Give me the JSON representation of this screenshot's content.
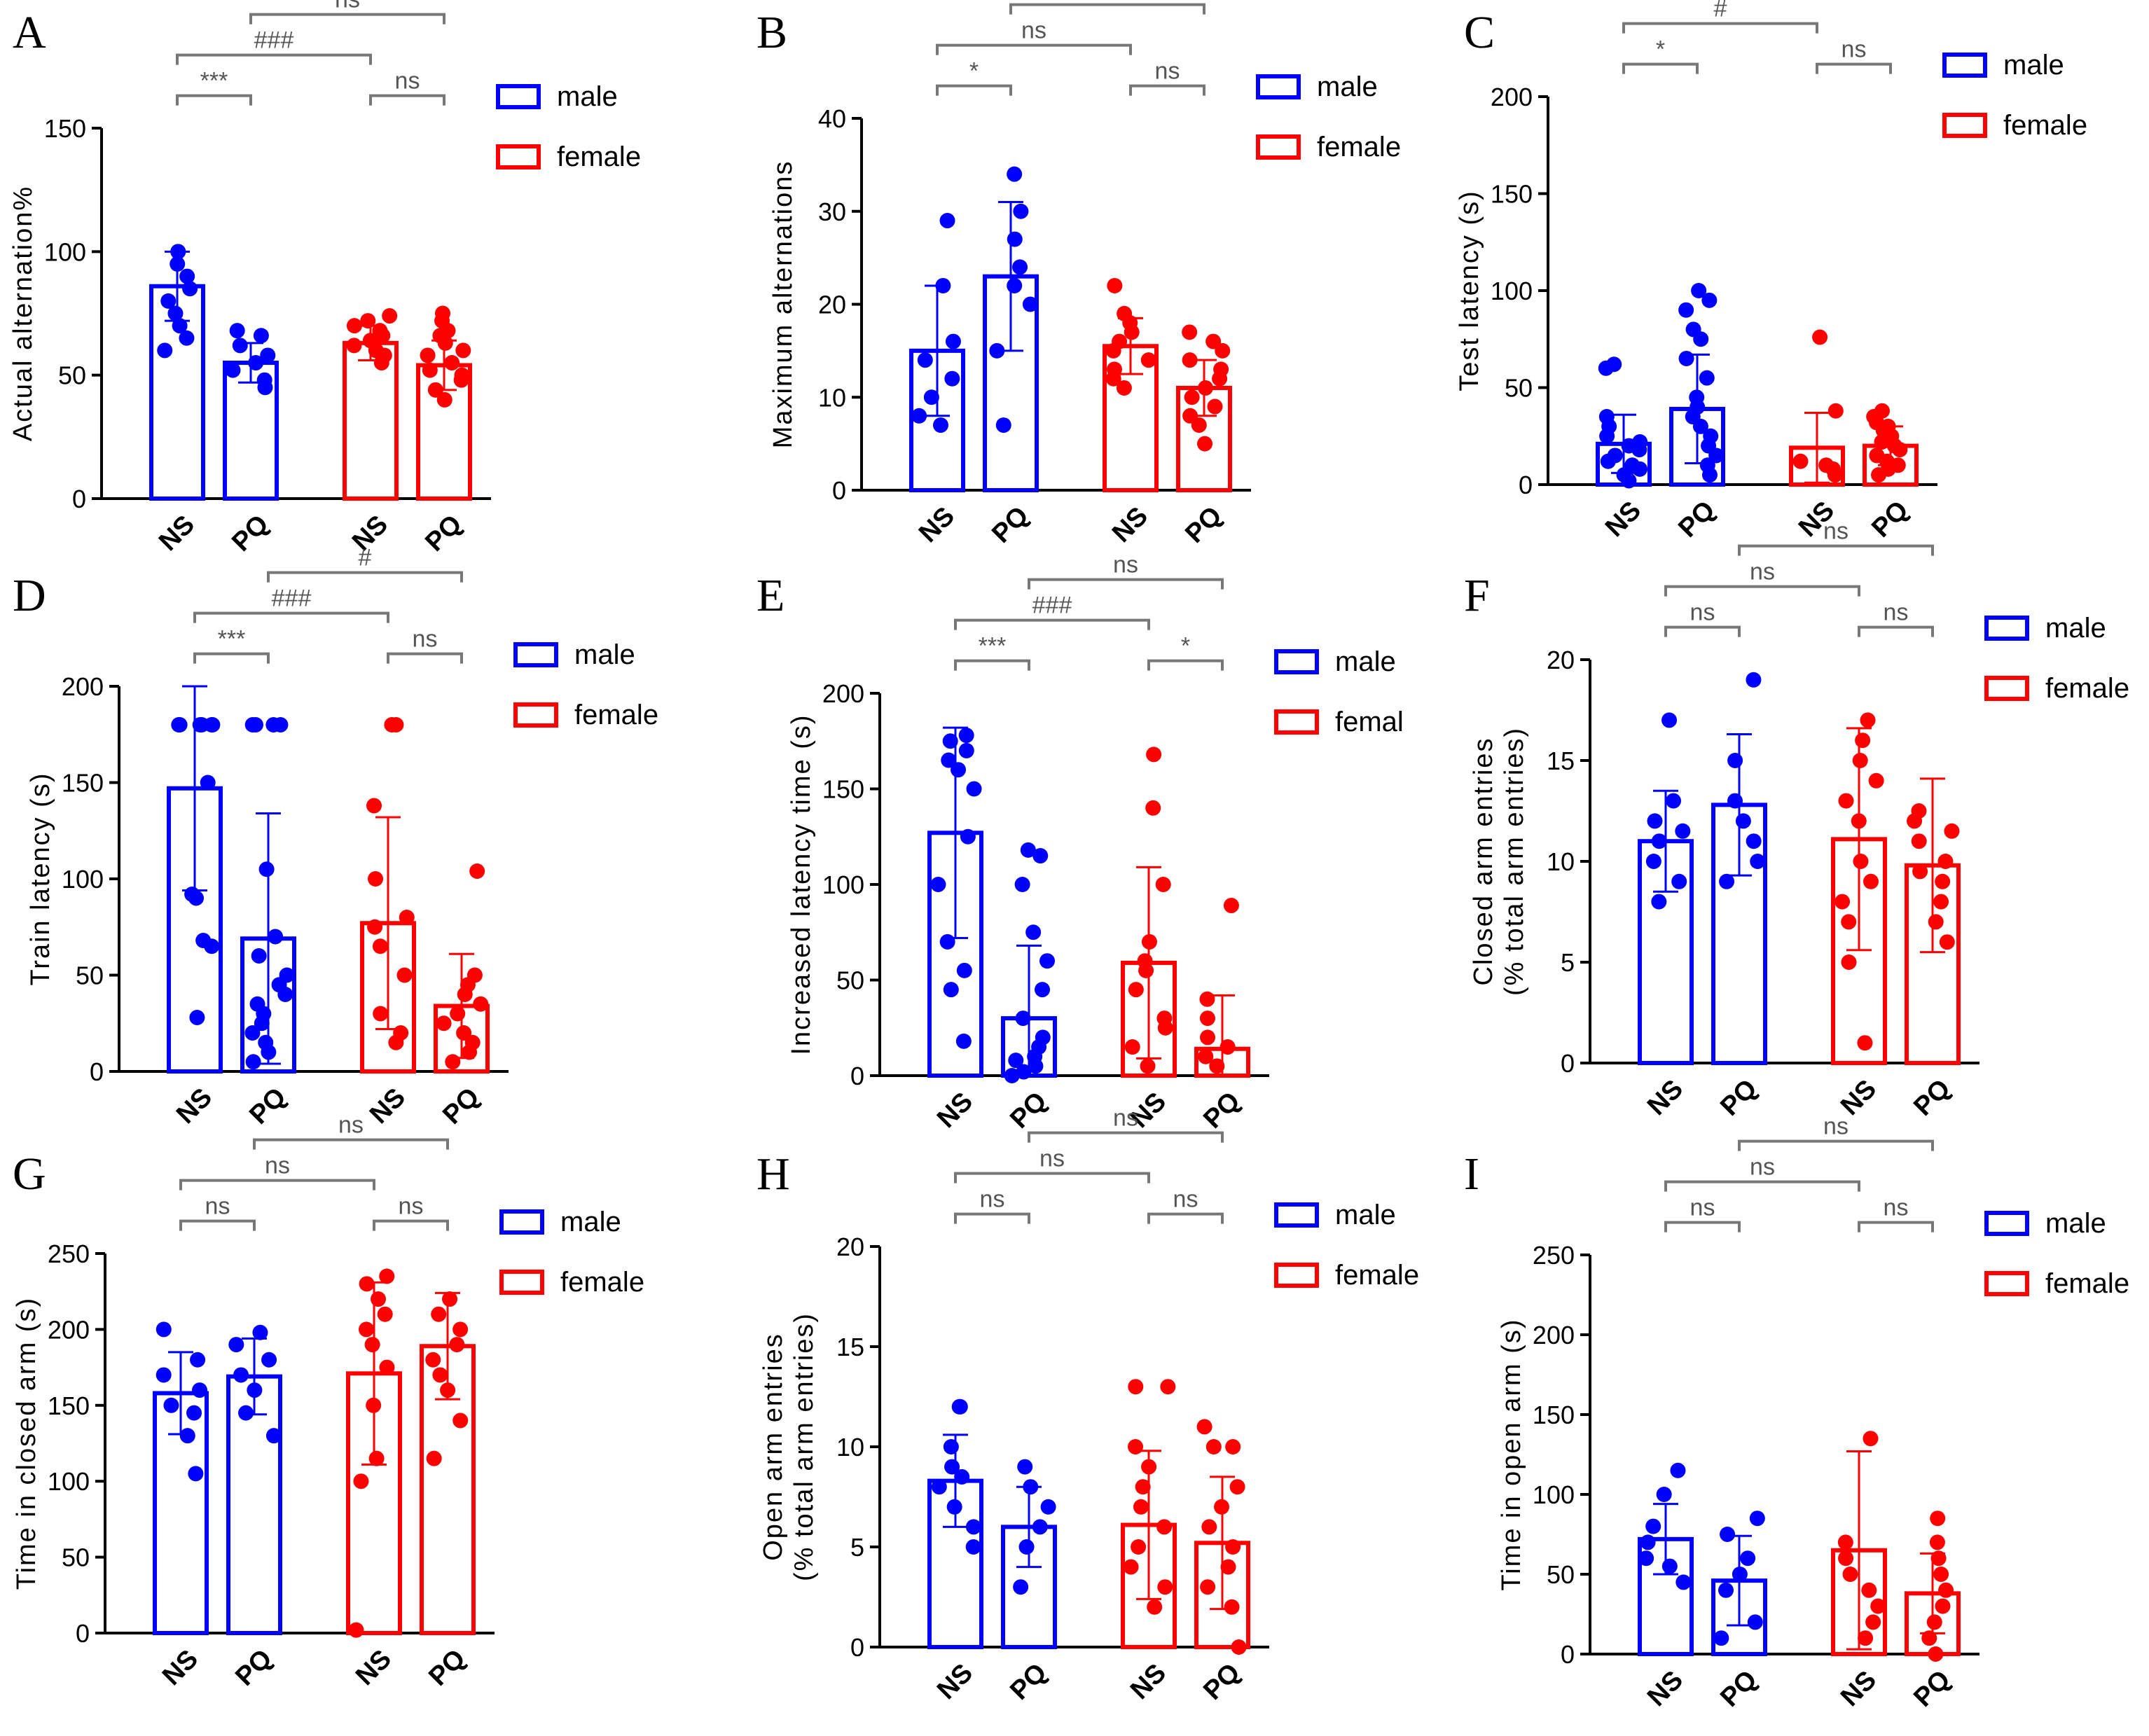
{
  "colors": {
    "male": "#0000ff",
    "female": "#ff0000",
    "axis": "#000000",
    "bracket": "#777777"
  },
  "chart_data": [
    {
      "type": "bar",
      "panel": "A",
      "ylabel": "Actual alternation%",
      "ylim": [
        0,
        150
      ],
      "yticks": [
        0,
        50,
        100,
        150
      ],
      "categories": [
        "NS",
        "PQ",
        "NS",
        "PQ"
      ],
      "legend": [
        "male",
        "female"
      ],
      "legend_position": "top-right",
      "bars": [
        {
          "group": "male",
          "value": 86,
          "sd": 14,
          "points": [
            60,
            65,
            70,
            75,
            80,
            85,
            90,
            95,
            100,
            100
          ]
        },
        {
          "group": "male",
          "value": 55,
          "sd": 8,
          "points": [
            45,
            48,
            52,
            55,
            58,
            62,
            66,
            68
          ]
        },
        {
          "group": "female",
          "value": 63,
          "sd": 7,
          "points": [
            55,
            58,
            60,
            62,
            64,
            66,
            68,
            70,
            72,
            74
          ]
        },
        {
          "group": "female",
          "value": 54,
          "sd": 10,
          "points": [
            40,
            44,
            48,
            50,
            52,
            55,
            58,
            60,
            63,
            66,
            68,
            72,
            75
          ]
        }
      ],
      "brackets": [
        {
          "from": 0,
          "to": 1,
          "label": "***"
        },
        {
          "from": 0,
          "to": 2,
          "label": "###"
        },
        {
          "from": 2,
          "to": 3,
          "label": "ns"
        },
        {
          "from": 1,
          "to": 3,
          "label": "ns"
        }
      ]
    },
    {
      "type": "bar",
      "panel": "B",
      "ylabel": "Maximum alternations",
      "ylim": [
        0,
        40
      ],
      "yticks": [
        0,
        10,
        20,
        30,
        40
      ],
      "categories": [
        "NS",
        "PQ",
        "NS",
        "PQ"
      ],
      "legend": [
        "male",
        "female"
      ],
      "legend_position": "top-right",
      "bars": [
        {
          "group": "male",
          "value": 15,
          "sd": 7,
          "points": [
            7,
            8,
            10,
            12,
            14,
            16,
            22,
            29
          ]
        },
        {
          "group": "male",
          "value": 23,
          "sd": 8,
          "points": [
            7,
            15,
            20,
            22,
            24,
            27,
            30,
            34
          ]
        },
        {
          "group": "female",
          "value": 15.5,
          "sd": 3,
          "points": [
            11,
            12,
            13,
            14,
            15,
            16,
            17,
            18,
            19,
            22
          ]
        },
        {
          "group": "female",
          "value": 11,
          "sd": 3,
          "points": [
            5,
            7,
            8,
            9,
            10,
            11,
            12,
            13,
            14,
            15,
            16,
            17
          ]
        }
      ],
      "brackets": [
        {
          "from": 0,
          "to": 1,
          "label": "*"
        },
        {
          "from": 0,
          "to": 2,
          "label": "ns"
        },
        {
          "from": 2,
          "to": 3,
          "label": "ns"
        },
        {
          "from": 1,
          "to": 3,
          "label": "###"
        }
      ]
    },
    {
      "type": "bar",
      "panel": "C",
      "ylabel": "Test latency (s)",
      "ylim": [
        0,
        200
      ],
      "yticks": [
        0,
        50,
        100,
        150,
        200
      ],
      "categories": [
        "NS",
        "PQ",
        "NS",
        "PQ"
      ],
      "legend": [
        "male",
        "female"
      ],
      "legend_position": "top-right",
      "bars": [
        {
          "group": "male",
          "value": 21,
          "sd": 15,
          "points": [
            2,
            5,
            8,
            10,
            12,
            15,
            18,
            20,
            22,
            25,
            30,
            35,
            60,
            62
          ]
        },
        {
          "group": "male",
          "value": 39,
          "sd": 28,
          "points": [
            5,
            10,
            15,
            20,
            25,
            30,
            35,
            40,
            45,
            55,
            65,
            75,
            80,
            90,
            95,
            100
          ]
        },
        {
          "group": "female",
          "value": 19,
          "sd": 18,
          "points": [
            5,
            8,
            10,
            12,
            38,
            76
          ]
        },
        {
          "group": "female",
          "value": 20,
          "sd": 10,
          "points": [
            5,
            8,
            10,
            12,
            15,
            18,
            20,
            22,
            25,
            28,
            30,
            32,
            35,
            38
          ]
        }
      ],
      "brackets": [
        {
          "from": 0,
          "to": 1,
          "label": "*"
        },
        {
          "from": 0,
          "to": 2,
          "label": "#"
        },
        {
          "from": 2,
          "to": 3,
          "label": "ns"
        },
        {
          "from": 1,
          "to": 3,
          "label": "#"
        }
      ]
    },
    {
      "type": "bar",
      "panel": "D",
      "ylabel": "Train latency (s)",
      "ylim": [
        0,
        200
      ],
      "yticks": [
        0,
        50,
        100,
        150,
        200
      ],
      "categories": [
        "NS",
        "PQ",
        "NS",
        "PQ"
      ],
      "legend": [
        "male",
        "female"
      ],
      "legend_position": "top-right",
      "bars": [
        {
          "group": "male",
          "value": 147,
          "sd": 53,
          "points": [
            28,
            65,
            68,
            90,
            92,
            150,
            180,
            180,
            180,
            180,
            180,
            180
          ]
        },
        {
          "group": "male",
          "value": 69,
          "sd": 65,
          "points": [
            5,
            10,
            15,
            20,
            25,
            30,
            35,
            40,
            45,
            50,
            60,
            70,
            105,
            180,
            180,
            180,
            180
          ]
        },
        {
          "group": "female",
          "value": 77,
          "sd": 55,
          "points": [
            15,
            20,
            30,
            50,
            65,
            75,
            80,
            100,
            138,
            180,
            180
          ]
        },
        {
          "group": "female",
          "value": 34,
          "sd": 27,
          "points": [
            5,
            10,
            15,
            20,
            25,
            30,
            35,
            40,
            45,
            50,
            104
          ]
        }
      ],
      "brackets": [
        {
          "from": 0,
          "to": 1,
          "label": "***"
        },
        {
          "from": 0,
          "to": 2,
          "label": "###"
        },
        {
          "from": 2,
          "to": 3,
          "label": "ns"
        },
        {
          "from": 1,
          "to": 3,
          "label": "#"
        }
      ]
    },
    {
      "type": "bar",
      "panel": "E",
      "ylabel": "Increased latency time (s)",
      "ylim": [
        0,
        200
      ],
      "yticks": [
        0,
        50,
        100,
        150,
        200
      ],
      "categories": [
        "NS",
        "PQ",
        "NS",
        "PQ"
      ],
      "legend": [
        "male",
        "femal"
      ],
      "legend_position": "top-right",
      "bars": [
        {
          "group": "male",
          "value": 127,
          "sd": 55,
          "points": [
            18,
            45,
            55,
            70,
            100,
            125,
            150,
            160,
            165,
            170,
            175,
            178
          ]
        },
        {
          "group": "male",
          "value": 30,
          "sd": 38,
          "points": [
            0,
            2,
            5,
            8,
            10,
            15,
            20,
            30,
            45,
            60,
            75,
            100,
            115,
            118
          ]
        },
        {
          "group": "female",
          "value": 59,
          "sd": 50,
          "points": [
            5,
            15,
            25,
            30,
            45,
            55,
            60,
            70,
            100,
            140,
            168
          ]
        },
        {
          "group": "female",
          "value": 14,
          "sd": 28,
          "points": [
            5,
            10,
            15,
            20,
            30,
            40,
            89
          ]
        }
      ],
      "brackets": [
        {
          "from": 0,
          "to": 1,
          "label": "***"
        },
        {
          "from": 0,
          "to": 2,
          "label": "###"
        },
        {
          "from": 2,
          "to": 3,
          "label": "*"
        },
        {
          "from": 1,
          "to": 3,
          "label": "ns"
        }
      ]
    },
    {
      "type": "bar",
      "panel": "F",
      "ylabel_lines": [
        "Closed arm entries",
        "(% total arm entries)"
      ],
      "ylim": [
        0,
        20
      ],
      "yticks": [
        0,
        5,
        10,
        15,
        20
      ],
      "categories": [
        "NS",
        "PQ",
        "NS",
        "PQ"
      ],
      "legend": [
        "male",
        "female"
      ],
      "legend_position": "top-right",
      "bars": [
        {
          "group": "male",
          "value": 11,
          "sd": 2.5,
          "points": [
            8,
            9,
            10,
            11,
            11.5,
            12,
            13,
            17
          ]
        },
        {
          "group": "male",
          "value": 12.8,
          "sd": 3.5,
          "points": [
            9,
            10,
            11,
            12,
            13,
            15,
            19
          ]
        },
        {
          "group": "female",
          "value": 11.1,
          "sd": 5.5,
          "points": [
            1,
            5,
            7,
            8,
            9,
            10,
            12,
            13,
            14,
            15,
            16,
            17
          ]
        },
        {
          "group": "female",
          "value": 9.8,
          "sd": 4.3,
          "points": [
            6,
            7,
            8,
            9,
            9.5,
            10,
            11,
            11.5,
            12,
            12.5
          ]
        }
      ],
      "brackets": [
        {
          "from": 0,
          "to": 1,
          "label": "ns"
        },
        {
          "from": 0,
          "to": 2,
          "label": "ns"
        },
        {
          "from": 2,
          "to": 3,
          "label": "ns"
        },
        {
          "from": 1,
          "to": 3,
          "label": "ns"
        }
      ]
    },
    {
      "type": "bar",
      "panel": "G",
      "ylabel": "Time in closed arm (s)",
      "ylim": [
        0,
        250
      ],
      "yticks": [
        0,
        50,
        100,
        150,
        200,
        250
      ],
      "categories": [
        "NS",
        "PQ",
        "NS",
        "PQ"
      ],
      "legend": [
        "male",
        "female"
      ],
      "legend_position": "top-right",
      "bars": [
        {
          "group": "male",
          "value": 158,
          "sd": 27,
          "points": [
            105,
            130,
            145,
            150,
            160,
            170,
            180,
            200
          ]
        },
        {
          "group": "male",
          "value": 169,
          "sd": 25,
          "points": [
            130,
            145,
            160,
            170,
            180,
            190,
            198
          ]
        },
        {
          "group": "female",
          "value": 171,
          "sd": 60,
          "points": [
            2,
            100,
            115,
            150,
            175,
            190,
            200,
            210,
            220,
            230,
            235
          ]
        },
        {
          "group": "female",
          "value": 189,
          "sd": 35,
          "points": [
            115,
            140,
            160,
            170,
            180,
            190,
            200,
            210,
            220
          ]
        }
      ],
      "brackets": [
        {
          "from": 0,
          "to": 1,
          "label": "ns"
        },
        {
          "from": 0,
          "to": 2,
          "label": "ns"
        },
        {
          "from": 2,
          "to": 3,
          "label": "ns"
        },
        {
          "from": 1,
          "to": 3,
          "label": "ns"
        }
      ]
    },
    {
      "type": "bar",
      "panel": "H",
      "ylabel_lines": [
        "Open arm entries",
        "(% total arm entries)"
      ],
      "ylim": [
        0,
        20
      ],
      "yticks": [
        0,
        5,
        10,
        15,
        20
      ],
      "categories": [
        "NS",
        "PQ",
        "NS",
        "PQ"
      ],
      "legend": [
        "male",
        "female"
      ],
      "legend_position": "top-right",
      "bars": [
        {
          "group": "male",
          "value": 8.3,
          "sd": 2.3,
          "points": [
            5,
            6,
            7,
            8,
            8.5,
            9,
            10,
            12,
            12
          ]
        },
        {
          "group": "male",
          "value": 6,
          "sd": 2,
          "points": [
            3,
            5,
            6,
            7,
            8,
            9
          ]
        },
        {
          "group": "female",
          "value": 6.1,
          "sd": 3.7,
          "points": [
            2,
            3,
            4,
            5,
            6,
            7,
            8,
            9,
            10,
            13,
            13
          ]
        },
        {
          "group": "female",
          "value": 5.2,
          "sd": 3.3,
          "points": [
            0,
            2,
            3,
            4,
            5,
            6,
            7,
            8,
            10,
            10,
            11
          ]
        }
      ],
      "brackets": [
        {
          "from": 0,
          "to": 1,
          "label": "ns"
        },
        {
          "from": 0,
          "to": 2,
          "label": "ns"
        },
        {
          "from": 2,
          "to": 3,
          "label": "ns"
        },
        {
          "from": 1,
          "to": 3,
          "label": "ns"
        }
      ]
    },
    {
      "type": "bar",
      "panel": "I",
      "ylabel": "Time in open arm (s)",
      "ylim": [
        0,
        250
      ],
      "yticks": [
        0,
        50,
        100,
        150,
        200,
        250
      ],
      "categories": [
        "NS",
        "PQ",
        "NS",
        "PQ"
      ],
      "legend": [
        "male",
        "female"
      ],
      "legend_position": "top-right",
      "bars": [
        {
          "group": "male",
          "value": 72,
          "sd": 22,
          "points": [
            45,
            55,
            60,
            70,
            80,
            100,
            115
          ]
        },
        {
          "group": "male",
          "value": 46,
          "sd": 28,
          "points": [
            10,
            20,
            40,
            50,
            60,
            75,
            85
          ]
        },
        {
          "group": "female",
          "value": 65,
          "sd": 62,
          "points": [
            10,
            20,
            30,
            40,
            50,
            60,
            70,
            135
          ]
        },
        {
          "group": "female",
          "value": 38,
          "sd": 25,
          "points": [
            0,
            10,
            20,
            30,
            40,
            50,
            60,
            70,
            85
          ]
        }
      ],
      "brackets": [
        {
          "from": 0,
          "to": 1,
          "label": "ns"
        },
        {
          "from": 0,
          "to": 2,
          "label": "ns"
        },
        {
          "from": 2,
          "to": 3,
          "label": "ns"
        },
        {
          "from": 1,
          "to": 3,
          "label": "ns"
        }
      ]
    }
  ]
}
